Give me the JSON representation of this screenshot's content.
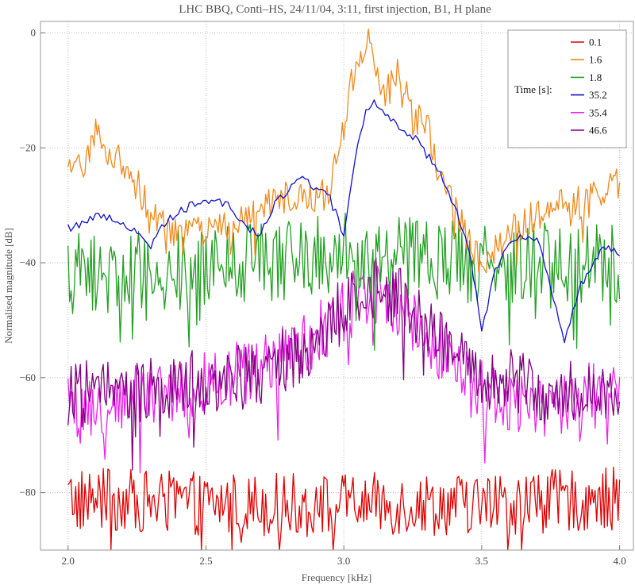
{
  "chart_data": {
    "type": "line",
    "title": "LHC BBQ,  Conti–HS,  24/11/04,  3:11,  first injection,  B1,  H plane",
    "xlabel": "Frequency  [kHz]",
    "ylabel": "Normalised magnitude  [dB]",
    "xlim": [
      1.9,
      4.05
    ],
    "ylim": [
      -90,
      2
    ],
    "xticks": [
      2.0,
      2.5,
      3.0,
      3.5,
      4.0
    ],
    "xtick_labels": [
      "2.0",
      "2.5",
      "3.0",
      "3.5",
      "4.0"
    ],
    "yticks": [
      0,
      -20,
      -40,
      -60,
      -80
    ],
    "ytick_labels": [
      "0",
      "−20",
      "−40",
      "−60",
      "−80"
    ],
    "grid": true,
    "legend": {
      "title": "Time  [s]:",
      "placement": "top-right"
    },
    "series": [
      {
        "name": "0.1",
        "color": "#e00000",
        "noise": 5.5,
        "x": [
          2.0,
          2.5,
          3.0,
          3.5,
          4.0
        ],
        "y": [
          -81,
          -82,
          -82,
          -82,
          -81
        ]
      },
      {
        "name": "1.6",
        "color": "#f08a1c",
        "noise": 3.0,
        "x": [
          2.0,
          2.05,
          2.1,
          2.15,
          2.2,
          2.3,
          2.4,
          2.5,
          2.6,
          2.7,
          2.8,
          2.9,
          2.95,
          3.0,
          3.05,
          3.1,
          3.15,
          3.2,
          3.25,
          3.3,
          3.35,
          3.4,
          3.45,
          3.5,
          3.6,
          3.7,
          3.8,
          3.9,
          4.0
        ],
        "y": [
          -25,
          -23,
          -17,
          -21,
          -22,
          -31,
          -35,
          -35,
          -33,
          -31,
          -28,
          -29,
          -27,
          -17,
          -3,
          -2,
          -11,
          -7,
          -15,
          -16,
          -25,
          -31,
          -35,
          -40,
          -34,
          -32,
          -30,
          -29,
          -26
        ]
      },
      {
        "name": "1.8",
        "color": "#22a022",
        "noise": 7.0,
        "x": [
          2.0,
          2.5,
          3.0,
          3.5,
          4.0
        ],
        "y": [
          -42,
          -41,
          -38,
          -40,
          -40
        ]
      },
      {
        "name": "35.2",
        "color": "#1010cc",
        "noise": 0.8,
        "x": [
          2.0,
          2.05,
          2.1,
          2.15,
          2.2,
          2.25,
          2.3,
          2.35,
          2.4,
          2.45,
          2.5,
          2.55,
          2.6,
          2.65,
          2.7,
          2.75,
          2.8,
          2.85,
          2.9,
          2.95,
          3.0,
          3.03,
          3.05,
          3.08,
          3.1,
          3.15,
          3.2,
          3.25,
          3.3,
          3.35,
          3.4,
          3.45,
          3.48,
          3.5,
          3.55,
          3.6,
          3.65,
          3.7,
          3.75,
          3.78,
          3.8,
          3.85,
          3.9,
          3.95,
          4.0
        ],
        "y": [
          -34,
          -33,
          -32,
          -32,
          -33,
          -35,
          -37,
          -33,
          -31,
          -30,
          -29,
          -29,
          -31,
          -34,
          -35,
          -30,
          -27,
          -25,
          -27,
          -29,
          -35,
          -26,
          -19,
          -14,
          -12,
          -14,
          -16,
          -18,
          -21,
          -24,
          -30,
          -37,
          -45,
          -52,
          -41,
          -36,
          -35,
          -36,
          -44,
          -50,
          -54,
          -45,
          -40,
          -37,
          -38
        ]
      },
      {
        "name": "35.4",
        "color": "#ee22ee",
        "noise": 6.0,
        "x": [
          2.0,
          2.2,
          2.4,
          2.6,
          2.8,
          2.9,
          3.0,
          3.1,
          3.2,
          3.3,
          3.4,
          3.5,
          3.6,
          3.7,
          3.8,
          3.9,
          4.0
        ],
        "y": [
          -66,
          -64,
          -62,
          -60,
          -56,
          -52,
          -48,
          -45,
          -47,
          -52,
          -57,
          -62,
          -64,
          -66,
          -64,
          -63,
          -64
        ]
      },
      {
        "name": "46.6",
        "color": "#800080",
        "noise": 6.0,
        "x": [
          2.0,
          2.2,
          2.4,
          2.6,
          2.8,
          2.9,
          3.0,
          3.1,
          3.2,
          3.3,
          3.4,
          3.5,
          3.6,
          3.7,
          3.8,
          3.9,
          4.0
        ],
        "y": [
          -63,
          -62,
          -61,
          -60,
          -57,
          -53,
          -47,
          -44,
          -46,
          -50,
          -55,
          -59,
          -61,
          -62,
          -62,
          -63,
          -63
        ]
      }
    ]
  }
}
